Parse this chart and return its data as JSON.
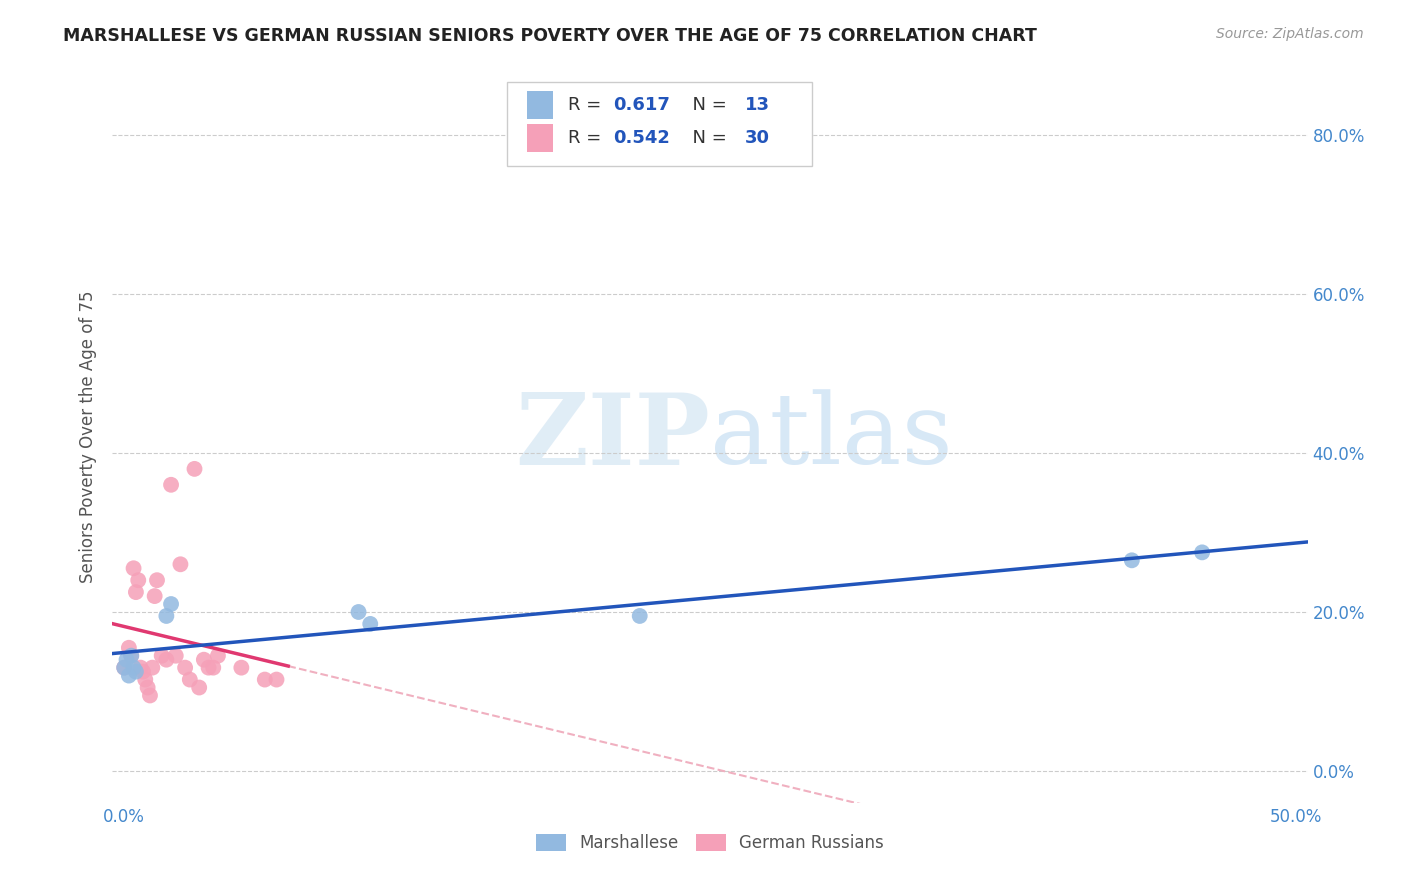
{
  "title": "MARSHALLESE VS GERMAN RUSSIAN SENIORS POVERTY OVER THE AGE OF 75 CORRELATION CHART",
  "source": "Source: ZipAtlas.com",
  "ylabel": "Seniors Poverty Over the Age of 75",
  "xlim": [
    -0.005,
    0.505
  ],
  "ylim": [
    -0.04,
    0.88
  ],
  "xticks": [
    0.0,
    0.1,
    0.2,
    0.3,
    0.4,
    0.5
  ],
  "yticks": [
    0.0,
    0.2,
    0.4,
    0.6,
    0.8
  ],
  "marshallese_x": [
    0.0,
    0.001,
    0.002,
    0.003,
    0.004,
    0.005,
    0.018,
    0.02,
    0.1,
    0.105,
    0.22,
    0.43,
    0.46
  ],
  "marshallese_y": [
    0.13,
    0.14,
    0.12,
    0.145,
    0.13,
    0.125,
    0.195,
    0.21,
    0.2,
    0.185,
    0.195,
    0.265,
    0.275
  ],
  "german_russian_x": [
    0.0,
    0.002,
    0.003,
    0.004,
    0.005,
    0.006,
    0.007,
    0.008,
    0.009,
    0.01,
    0.011,
    0.012,
    0.013,
    0.014,
    0.016,
    0.018,
    0.02,
    0.022,
    0.024,
    0.026,
    0.028,
    0.03,
    0.032,
    0.034,
    0.036,
    0.038,
    0.04,
    0.05,
    0.06,
    0.065
  ],
  "german_russian_y": [
    0.13,
    0.155,
    0.145,
    0.255,
    0.225,
    0.24,
    0.13,
    0.125,
    0.115,
    0.105,
    0.095,
    0.13,
    0.22,
    0.24,
    0.145,
    0.14,
    0.36,
    0.145,
    0.26,
    0.13,
    0.115,
    0.38,
    0.105,
    0.14,
    0.13,
    0.13,
    0.145,
    0.13,
    0.115,
    0.115
  ],
  "blue_color": "#92b9e0",
  "pink_color": "#f5a0b8",
  "blue_line_color": "#2255bb",
  "pink_line_color": "#e03870",
  "pink_dash_color": "#f0b0c0",
  "R_marshallese": 0.617,
  "N_marshallese": 13,
  "R_german_russian": 0.542,
  "N_german_russian": 30,
  "watermark_zip": "ZIP",
  "watermark_atlas": "atlas",
  "background_color": "#ffffff",
  "grid_color": "#cccccc",
  "tick_color": "#4488cc",
  "label_color": "#555555"
}
